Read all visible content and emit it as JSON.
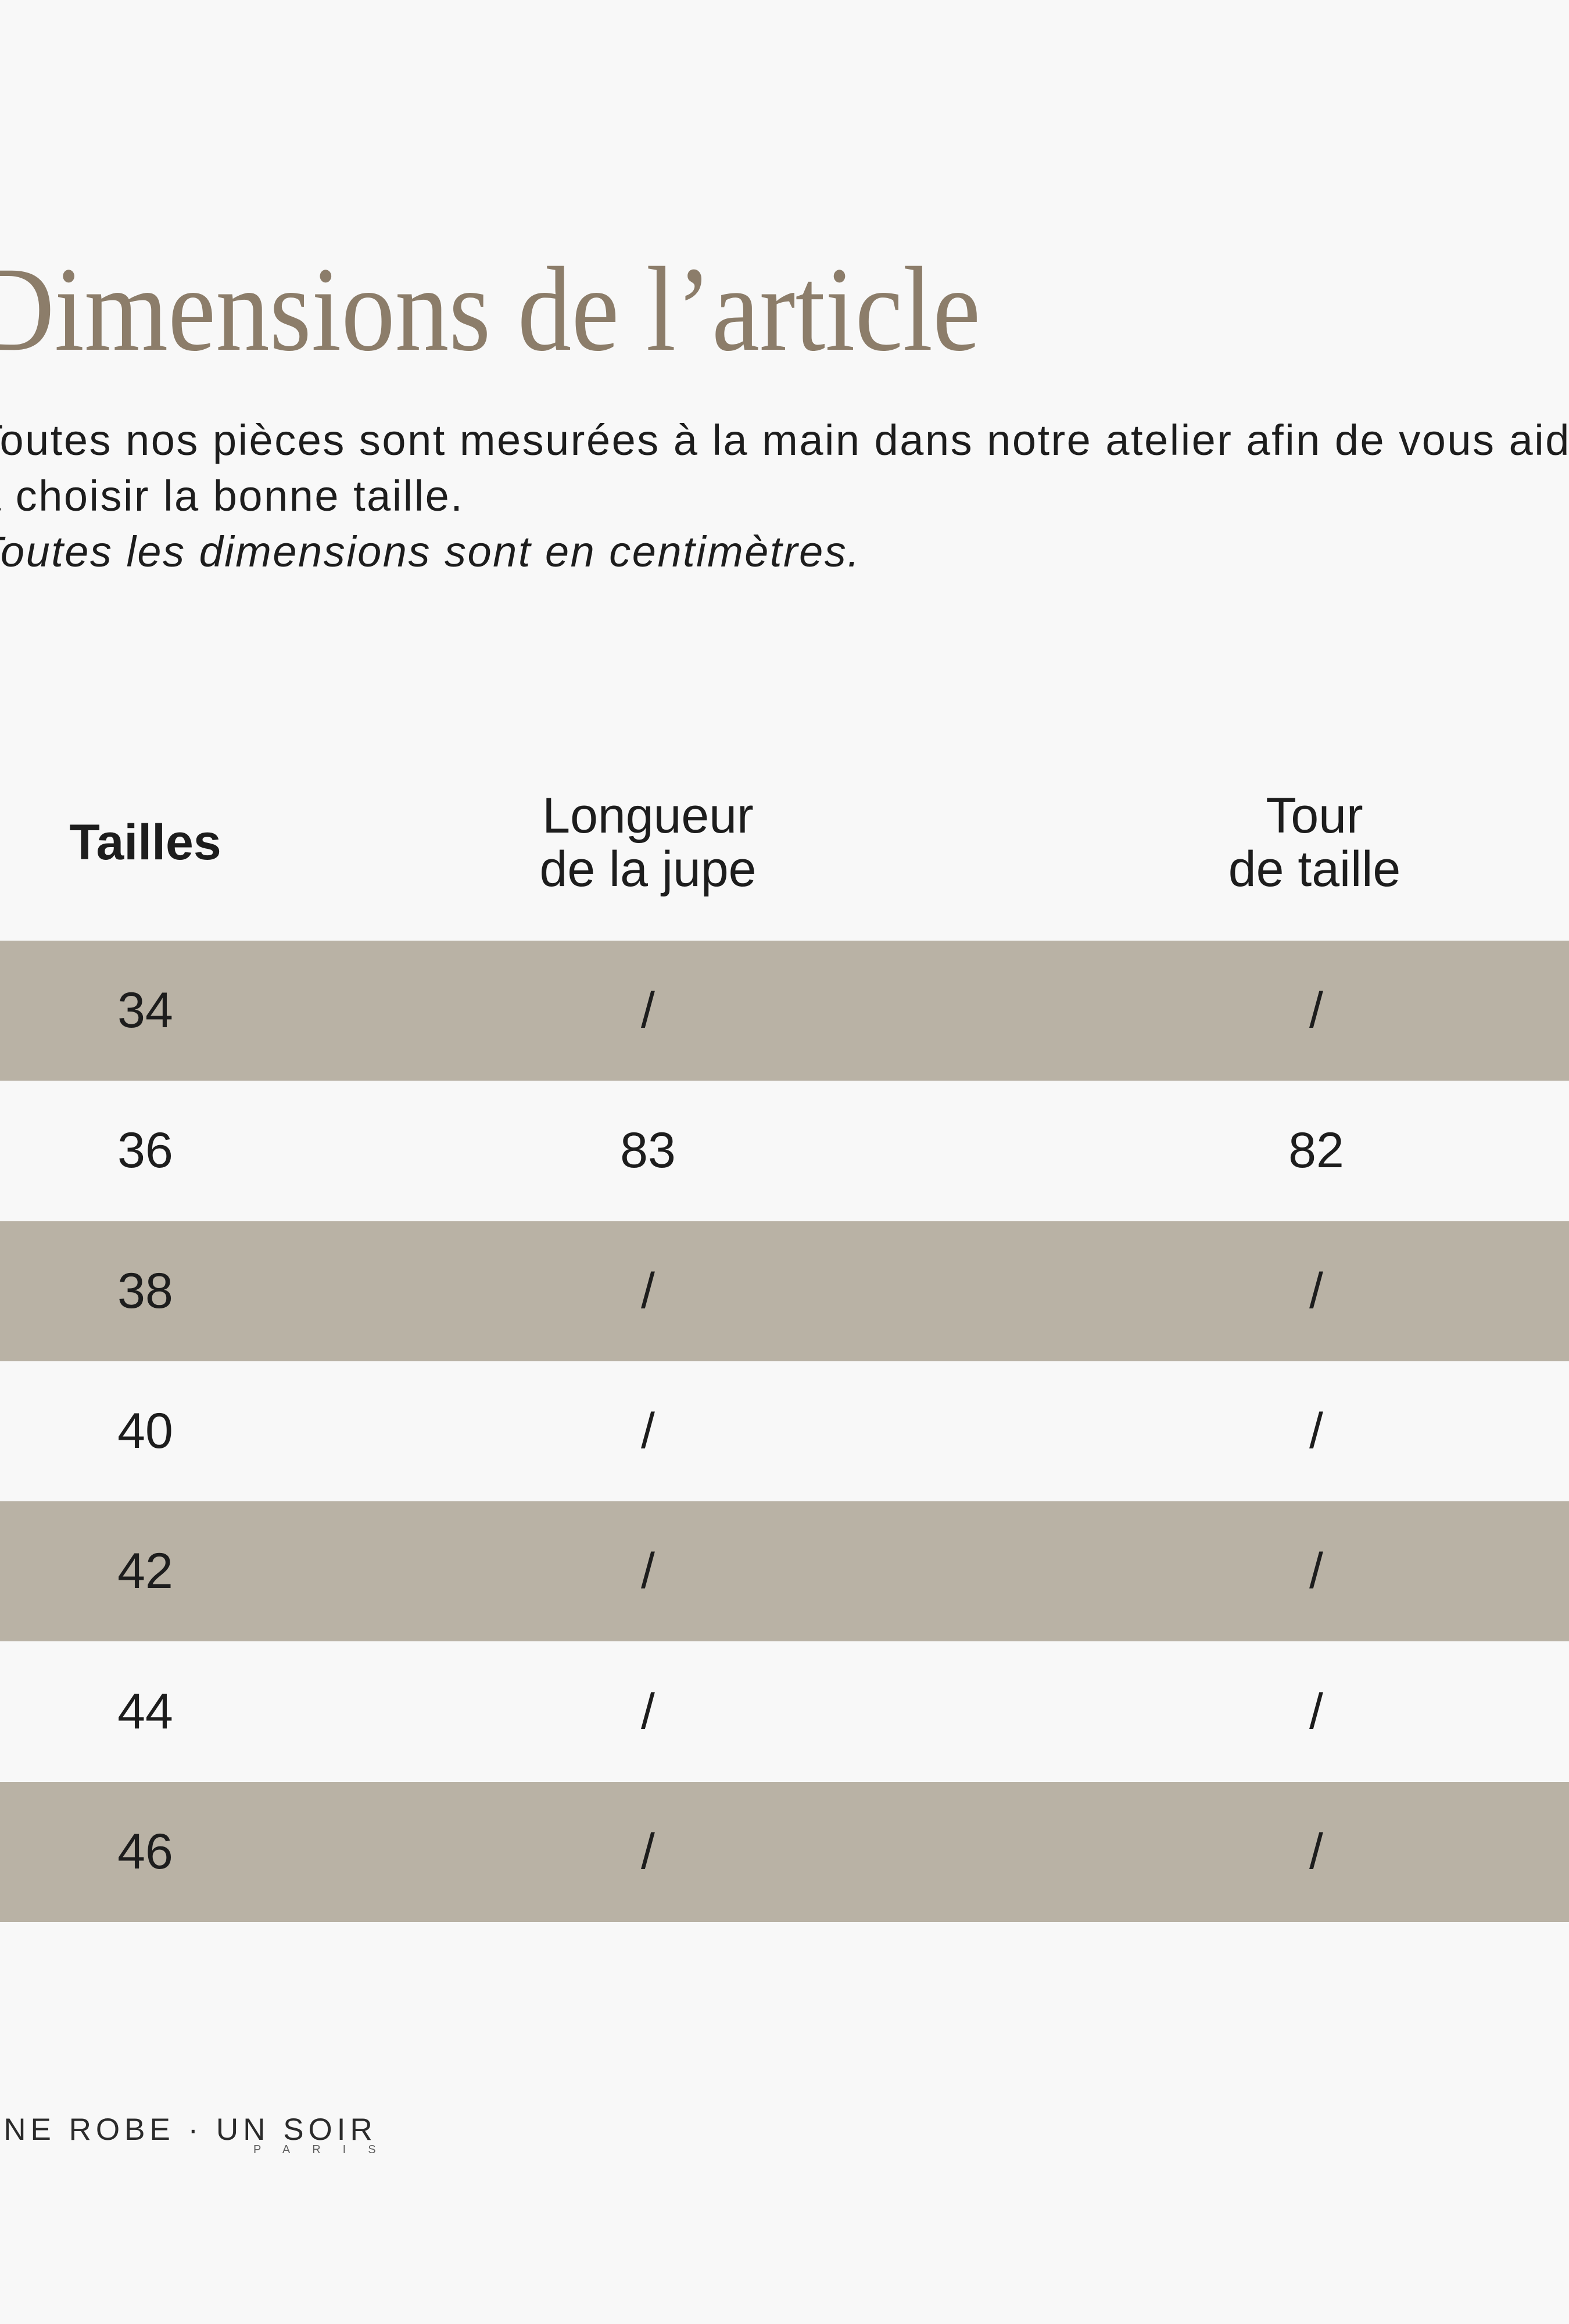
{
  "title": {
    "text": "Dimensions de l’article"
  },
  "intro": {
    "line1": "Toutes nos pièces sont mesurées à la main dans notre atelier afin de vous aider",
    "line2": "à choisir la bonne taille.",
    "note": "Toutes les dimensions sont en centimètres."
  },
  "table": {
    "columns": [
      {
        "label": "Tailles"
      },
      {
        "label": "Longueur\nde la jupe"
      },
      {
        "label": "Tour\nde taille"
      }
    ],
    "rows": [
      {
        "size": "34",
        "skirt_length": "/",
        "waist": "/"
      },
      {
        "size": "36",
        "skirt_length": "83",
        "waist": "82"
      },
      {
        "size": "38",
        "skirt_length": "/",
        "waist": "/"
      },
      {
        "size": "40",
        "skirt_length": "/",
        "waist": "/"
      },
      {
        "size": "42",
        "skirt_length": "/",
        "waist": "/"
      },
      {
        "size": "44",
        "skirt_length": "/",
        "waist": "/"
      },
      {
        "size": "46",
        "skirt_length": "/",
        "waist": "/"
      }
    ]
  },
  "brand": {
    "logo_text": "UNE ROBE · UN SOIR",
    "logo_sub": "PARIS"
  },
  "colors": {
    "background": "#f8f8f8",
    "stripe": "#b9b2a5",
    "title": "#8c7d6a",
    "text": "#1d1d1d",
    "logo": "#2b2b2b",
    "logo_sub": "#5f5f5f"
  }
}
